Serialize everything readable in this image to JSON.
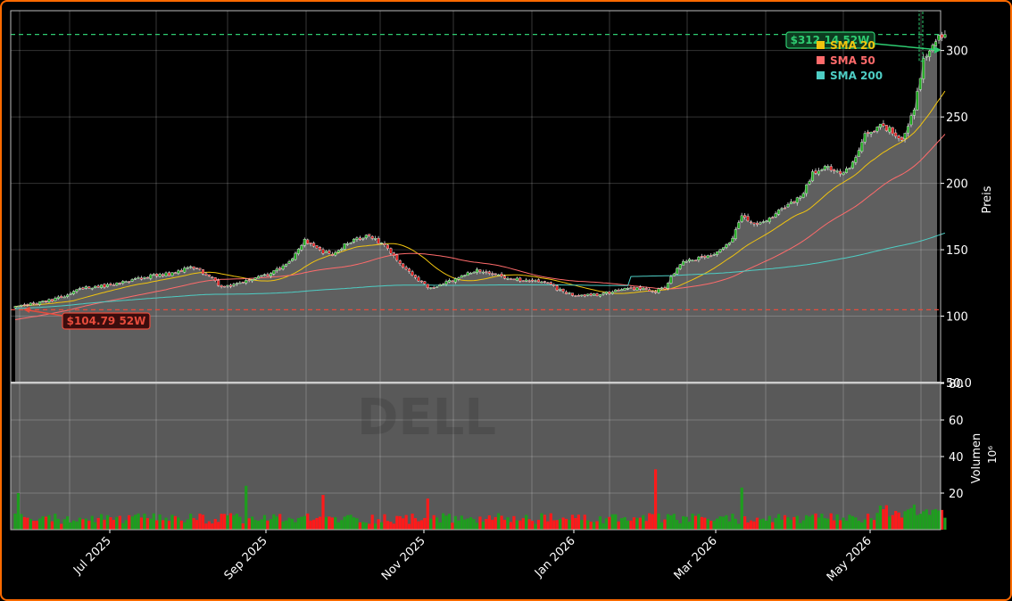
{
  "chart_data": {
    "type": "candlestick",
    "ticker_watermark": "DELL",
    "site_watermark": "",
    "xlabels": [
      "Jul 2025",
      "Sep 2025",
      "Nov 2025",
      "Jan 2026",
      "Mar 2026",
      "May 2026"
    ],
    "price_axis": {
      "label": "Preis",
      "ylim": [
        50,
        330
      ],
      "ticks": [
        50,
        100,
        150,
        200,
        250,
        300
      ],
      "tick_labels": [
        "50.0",
        "100",
        "150",
        "200",
        "250",
        "300"
      ]
    },
    "volume_axis": {
      "label": "Volumen",
      "unit": "10⁶",
      "ylim": [
        0,
        80
      ],
      "ticks": [
        20,
        40,
        60,
        80
      ],
      "tick_labels": [
        "20",
        "40",
        "60",
        "80"
      ]
    },
    "high_52w": {
      "value": 312.14,
      "label": "$312.14 52W",
      "color": "#2ecc71"
    },
    "low_52w": {
      "value": 104.79,
      "label": "$104.79 52W",
      "color": "#e74c3c"
    },
    "legend": [
      {
        "name": "SMA 20",
        "color": "#f1c40f"
      },
      {
        "name": "SMA 50",
        "color": "#ff6b6b"
      },
      {
        "name": "SMA 200",
        "color": "#4ecdc4"
      }
    ],
    "close_anchors": [
      [
        0,
        107
      ],
      [
        8,
        110
      ],
      [
        15,
        114
      ],
      [
        22,
        121
      ],
      [
        30,
        123
      ],
      [
        38,
        127
      ],
      [
        45,
        131
      ],
      [
        52,
        132
      ],
      [
        56,
        137
      ],
      [
        60,
        134
      ],
      [
        64,
        128
      ],
      [
        67,
        121
      ],
      [
        72,
        124
      ],
      [
        78,
        128
      ],
      [
        84,
        133
      ],
      [
        88,
        140
      ],
      [
        91,
        146
      ],
      [
        94,
        158
      ],
      [
        98,
        150
      ],
      [
        103,
        146
      ],
      [
        108,
        155
      ],
      [
        113,
        160
      ],
      [
        117,
        158
      ],
      [
        121,
        150
      ],
      [
        126,
        138
      ],
      [
        131,
        126
      ],
      [
        135,
        121
      ],
      [
        140,
        125
      ],
      [
        145,
        130
      ],
      [
        150,
        134
      ],
      [
        155,
        132
      ],
      [
        160,
        128
      ],
      [
        166,
        127
      ],
      [
        172,
        126
      ],
      [
        178,
        118
      ],
      [
        183,
        115
      ],
      [
        188,
        116
      ],
      [
        193,
        118
      ],
      [
        198,
        120
      ],
      [
        203,
        121
      ],
      [
        207,
        118
      ],
      [
        211,
        121
      ],
      [
        216,
        140
      ],
      [
        221,
        143
      ],
      [
        226,
        145
      ],
      [
        232,
        154
      ],
      [
        236,
        175
      ],
      [
        240,
        168
      ],
      [
        245,
        173
      ],
      [
        250,
        182
      ],
      [
        255,
        190
      ],
      [
        259,
        207
      ],
      [
        263,
        213
      ],
      [
        268,
        206
      ],
      [
        272,
        215
      ],
      [
        276,
        236
      ],
      [
        280,
        243
      ],
      [
        284,
        240
      ],
      [
        288,
        232
      ],
      [
        292,
        255
      ],
      [
        295,
        292
      ],
      [
        298,
        306
      ],
      [
        301,
        312.14
      ]
    ],
    "volume_spikes": [
      [
        1,
        20
      ],
      [
        75,
        24
      ],
      [
        100,
        19
      ],
      [
        134,
        17
      ],
      [
        208,
        33
      ],
      [
        236,
        23
      ]
    ],
    "sma_note": "SMA 20/50/200 computed from the close series"
  }
}
